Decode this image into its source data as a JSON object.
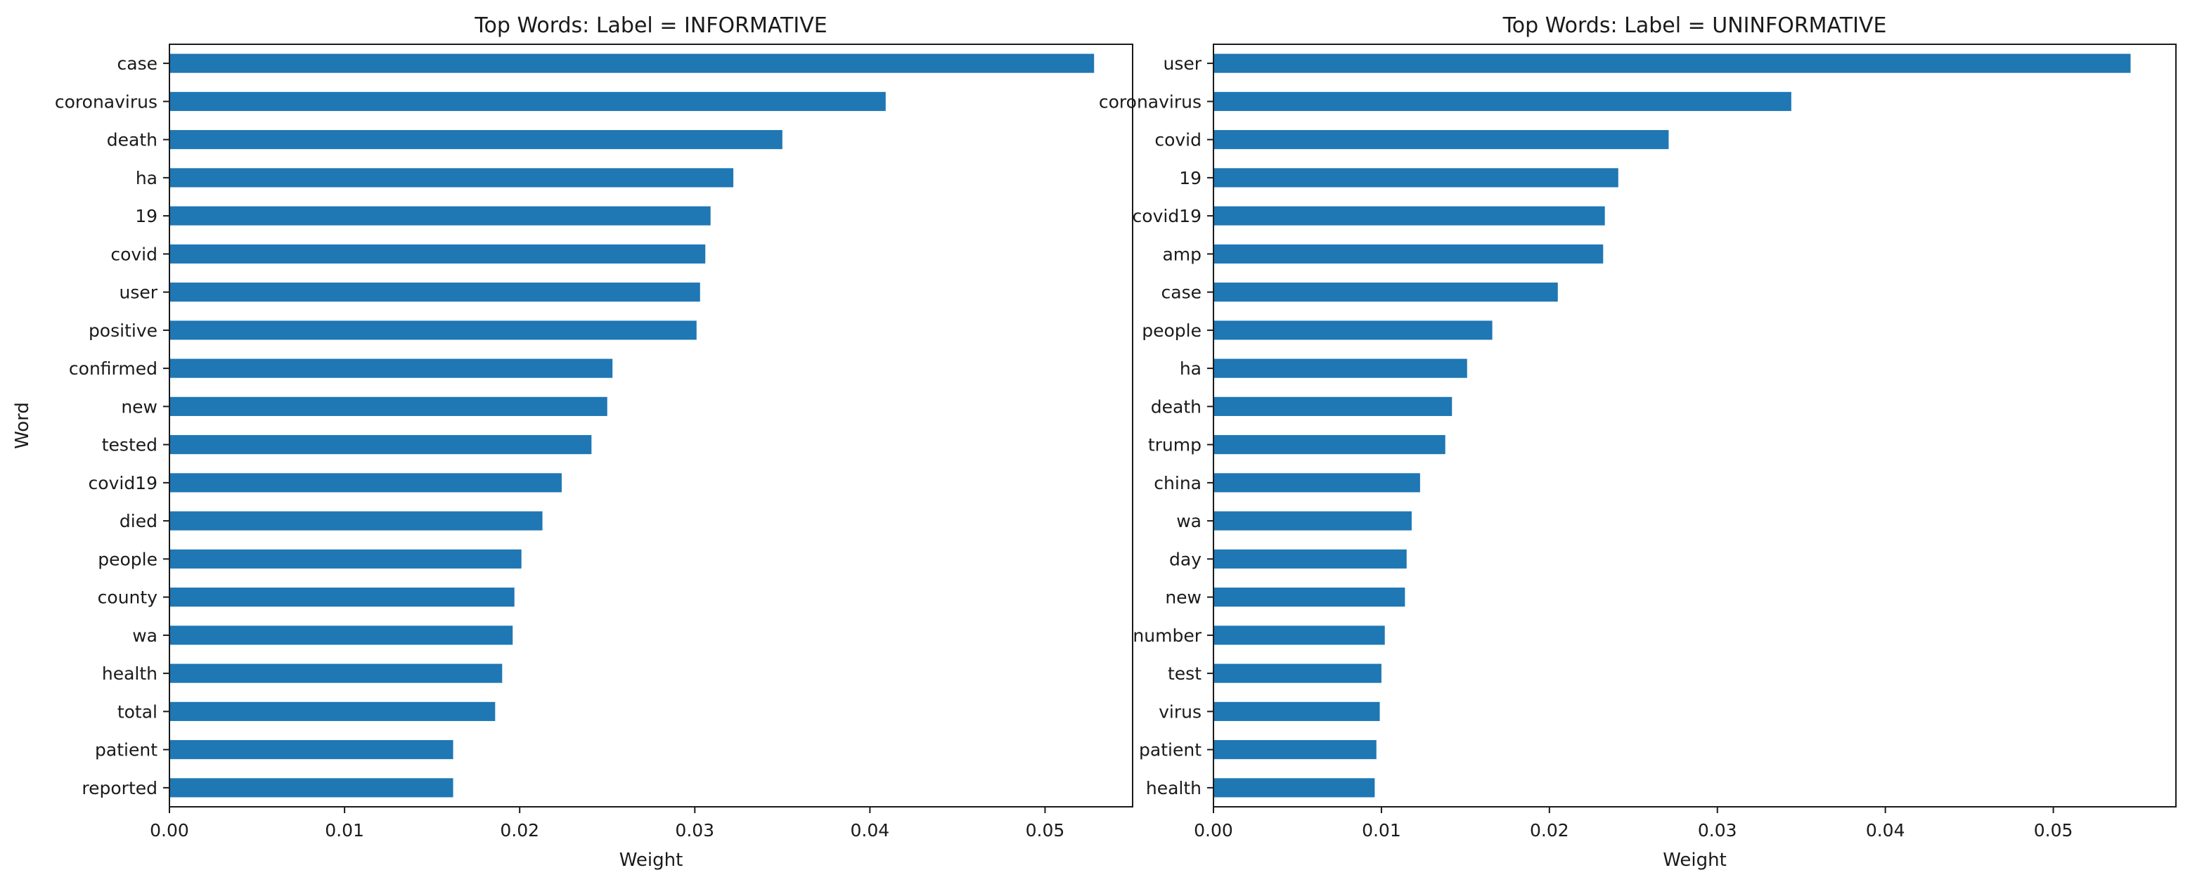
{
  "chart_data": [
    {
      "type": "bar",
      "orientation": "horizontal",
      "title": "Top Words: Label = INFORMATIVE",
      "xlabel": "Weight",
      "ylabel": "Word",
      "xlim": [
        0,
        0.055
      ],
      "xticks": [
        "0.00",
        "0.01",
        "0.02",
        "0.03",
        "0.04",
        "0.05"
      ],
      "xtick_values": [
        0,
        0.01,
        0.02,
        0.03,
        0.04,
        0.05
      ],
      "grid": false,
      "bar_color": "#1f77b4",
      "categories": [
        "case",
        "coronavirus",
        "death",
        "ha",
        "19",
        "covid",
        "user",
        "positive",
        "confirmed",
        "new",
        "tested",
        "covid19",
        "died",
        "people",
        "county",
        "wa",
        "health",
        "total",
        "patient",
        "reported"
      ],
      "values": [
        0.0528,
        0.0409,
        0.035,
        0.0322,
        0.0309,
        0.0306,
        0.0303,
        0.0301,
        0.0253,
        0.025,
        0.0241,
        0.0224,
        0.0213,
        0.0201,
        0.0197,
        0.0196,
        0.019,
        0.0186,
        0.0162,
        0.0162
      ]
    },
    {
      "type": "bar",
      "orientation": "horizontal",
      "title": "Top Words: Label = UNINFORMATIVE",
      "xlabel": "Weight",
      "ylabel": "",
      "xlim": [
        0,
        0.0573
      ],
      "xticks": [
        "0.00",
        "0.01",
        "0.02",
        "0.03",
        "0.04",
        "0.05"
      ],
      "xtick_values": [
        0,
        0.01,
        0.02,
        0.03,
        0.04,
        0.05
      ],
      "grid": false,
      "bar_color": "#1f77b4",
      "categories": [
        "user",
        "coronavirus",
        "covid",
        "19",
        "covid19",
        "amp",
        "case",
        "people",
        "ha",
        "death",
        "trump",
        "china",
        "wa",
        "day",
        "new",
        "number",
        "test",
        "virus",
        "patient",
        "health"
      ],
      "values": [
        0.0546,
        0.0344,
        0.0271,
        0.0241,
        0.0233,
        0.0232,
        0.0205,
        0.0166,
        0.0151,
        0.0142,
        0.0138,
        0.0123,
        0.0118,
        0.0115,
        0.0114,
        0.0102,
        0.01,
        0.0099,
        0.0097,
        0.0096
      ]
    }
  ]
}
